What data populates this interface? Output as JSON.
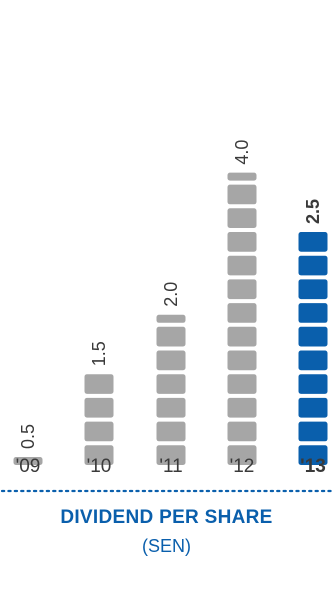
{
  "chart_data": {
    "type": "bar",
    "title": "DIVIDEND PER SHARE",
    "subtitle": "(SEN)",
    "categories": [
      "'09",
      "'10",
      "'11",
      "'12",
      "'13"
    ],
    "values": [
      0.5,
      1.5,
      2.0,
      4.0,
      2.5
    ],
    "value_labels": [
      "0.5",
      "1.5",
      "2.0",
      "4.0",
      "2.5"
    ],
    "highlight_index": 4,
    "ylim": [
      0,
      4.0
    ],
    "grid": false,
    "legend": "none",
    "xlabel": "",
    "ylabel": ""
  },
  "colors": {
    "bar": "#a6a6a6",
    "highlight_bar": "#0a5fac",
    "title": "#0a5fac",
    "text": "#3a3a3a",
    "divider": "#0a5fac"
  }
}
